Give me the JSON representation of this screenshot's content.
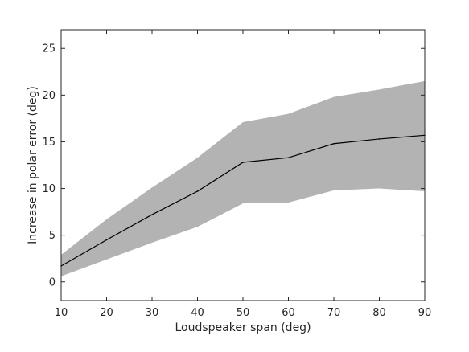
{
  "chart_data": {
    "type": "area",
    "xlabel": "Loudspeaker span (deg)",
    "ylabel": "Increase in polar error (deg)",
    "xlim": [
      10,
      90
    ],
    "ylim": [
      -2,
      27
    ],
    "xticks": [
      10,
      20,
      30,
      40,
      50,
      60,
      70,
      80,
      90
    ],
    "yticks": [
      0,
      5,
      10,
      15,
      20,
      25
    ],
    "grid": false,
    "x": [
      10,
      20,
      30,
      40,
      50,
      60,
      70,
      80,
      90
    ],
    "series": [
      {
        "kind": "line",
        "values": [
          1.7,
          4.5,
          7.2,
          9.7,
          12.8,
          13.3,
          14.8,
          15.3,
          15.7
        ]
      },
      {
        "kind": "band",
        "lower": [
          0.6,
          2.4,
          4.2,
          5.9,
          8.4,
          8.5,
          9.8,
          10.0,
          9.7
        ],
        "upper": [
          2.9,
          6.7,
          10.1,
          13.3,
          17.1,
          18.0,
          19.8,
          20.6,
          21.5
        ]
      }
    ],
    "colors": {
      "band": "#b3b3b3",
      "line": "#000000",
      "axes": "#262626"
    }
  }
}
